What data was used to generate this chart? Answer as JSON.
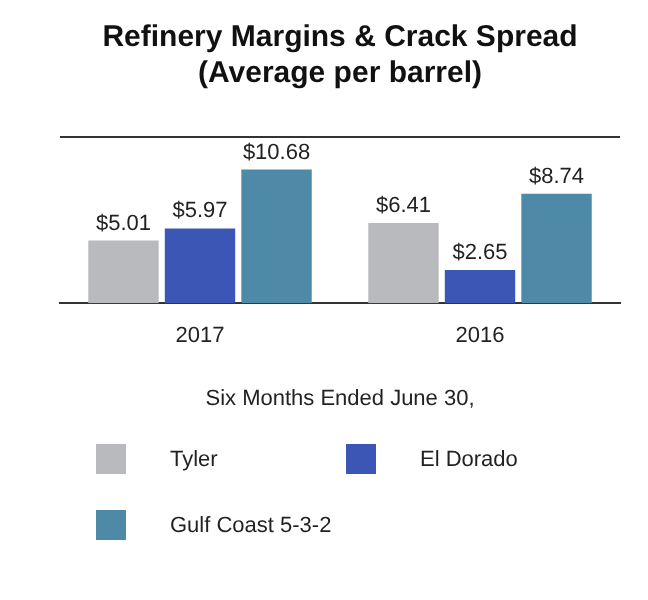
{
  "chart_data": {
    "type": "bar",
    "title": "Refinery Margins & Crack Spread\n(Average per barrel)",
    "xlabel": "Six Months Ended June 30,",
    "categories": [
      "2017",
      "2016"
    ],
    "series": [
      {
        "name": "Tyler",
        "color": "#b9babe",
        "values": [
          5.01,
          6.41
        ],
        "value_labels": [
          "$5.01",
          "$6.41"
        ]
      },
      {
        "name": "El Dorado",
        "color": "#3b56b5",
        "values": [
          5.97,
          2.65
        ],
        "value_labels": [
          "$5.97",
          "$2.65"
        ]
      },
      {
        "name": "Gulf Coast 5-3-2",
        "color": "#4f89a8",
        "values": [
          10.68,
          8.74
        ],
        "value_labels": [
          "$10.68",
          "$8.74"
        ]
      }
    ],
    "grid": false,
    "legend": "bottom",
    "tick_labels": "x"
  }
}
